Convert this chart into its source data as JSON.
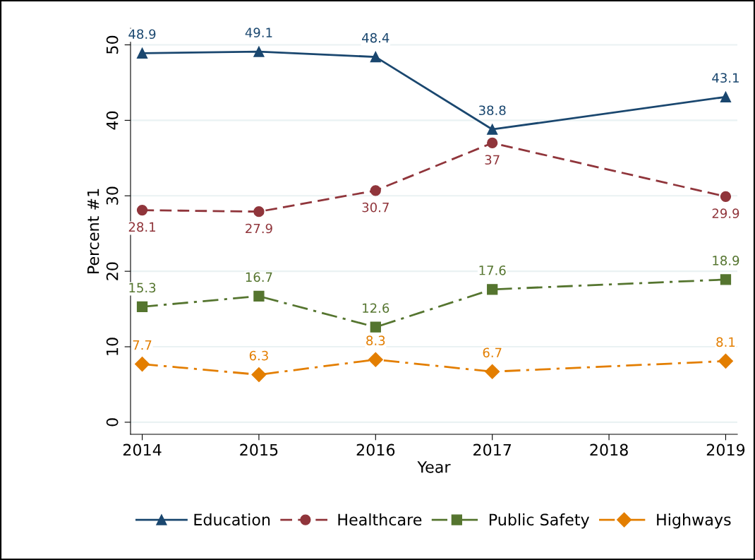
{
  "chart_data": {
    "type": "line",
    "xlabel": "Year",
    "ylabel": "Percent #1",
    "x": [
      2014,
      2015,
      2016,
      2017,
      2019
    ],
    "series": [
      {
        "name": "Education",
        "color": "#1a476f",
        "marker": "triangle",
        "line_style": "solid",
        "values": [
          48.9,
          49.1,
          48.4,
          38.8,
          43.1
        ]
      },
      {
        "name": "Healthcare",
        "color": "#90353b",
        "marker": "circle",
        "line_style": "dashed",
        "values": [
          28.1,
          27.9,
          30.7,
          37,
          29.9
        ]
      },
      {
        "name": "Public Safety",
        "color": "#55752f",
        "marker": "square",
        "line_style": "dashdot",
        "values": [
          15.3,
          16.7,
          12.6,
          17.6,
          18.9
        ]
      },
      {
        "name": "Highways",
        "color": "#e37e00",
        "marker": "diamond",
        "line_style": "dashdot",
        "values": [
          7.7,
          6.3,
          8.3,
          6.7,
          8.1
        ]
      }
    ],
    "xlim": [
      2013.9,
      2019.1
    ],
    "xticks": [
      2014,
      2015,
      2016,
      2017,
      2018,
      2019
    ],
    "ylim": [
      -1.6,
      52.2
    ],
    "yticks": [
      0,
      10,
      20,
      30,
      40,
      50
    ],
    "grid": "y",
    "legend": "bottom",
    "data_labels": true
  }
}
